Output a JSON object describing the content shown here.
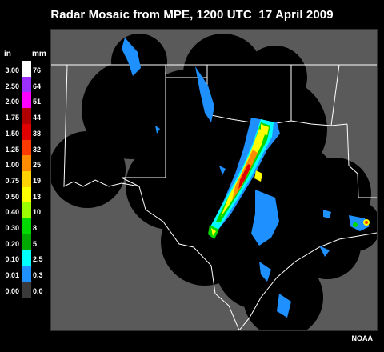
{
  "title": "Radar Mosaic from MPE, 1200 UTC  17 April 2009",
  "legend": {
    "unit_in": "in",
    "unit_mm": "mm",
    "rows": [
      {
        "in": "3.00",
        "mm": "76",
        "color": "#ffffff"
      },
      {
        "in": "2.50",
        "mm": "64",
        "color": "#9b30ff"
      },
      {
        "in": "2.00",
        "mm": "51",
        "color": "#ff00ff"
      },
      {
        "in": "1.75",
        "mm": "44",
        "color": "#b00000"
      },
      {
        "in": "1.50",
        "mm": "38",
        "color": "#e00000"
      },
      {
        "in": "1.25",
        "mm": "32",
        "color": "#ff3a00"
      },
      {
        "in": "1.00",
        "mm": "25",
        "color": "#ff8c00"
      },
      {
        "in": "0.75",
        "mm": "19",
        "color": "#ffd200"
      },
      {
        "in": "0.50",
        "mm": "13",
        "color": "#ffff00"
      },
      {
        "in": "0.40",
        "mm": "10",
        "color": "#9cff00"
      },
      {
        "in": "0.30",
        "mm": "8",
        "color": "#00d800"
      },
      {
        "in": "0.20",
        "mm": "5",
        "color": "#00a800"
      },
      {
        "in": "0.10",
        "mm": "2.5",
        "color": "#00ffff"
      },
      {
        "in": "0.01",
        "mm": "0.3",
        "color": "#1e90ff"
      },
      {
        "in": "0.00",
        "mm": "0.0",
        "color": "#3a3a3a"
      }
    ]
  },
  "credit": "NOAA",
  "map": {
    "background_color": "#5a5a5a",
    "coverage_color": "#000000",
    "border_color": "#ffffff",
    "light_rain_color": "#1e90ff"
  }
}
